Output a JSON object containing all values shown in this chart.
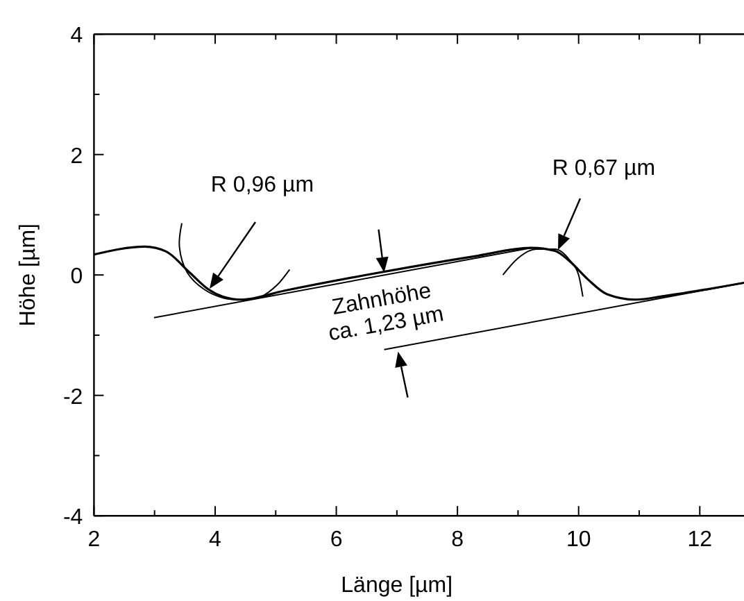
{
  "chart_data": {
    "type": "line",
    "xlabel": "Länge [µm]",
    "ylabel": "Höhe [µm]",
    "xlim": [
      2,
      12.73
    ],
    "ylim": [
      -4,
      4
    ],
    "xticks": [
      2,
      {
        "value": 3,
        "label": null
      },
      4,
      {
        "value": 5,
        "label": null
      },
      6,
      {
        "value": 7,
        "label": null
      },
      8,
      {
        "value": 9,
        "label": null
      },
      10,
      {
        "value": 11,
        "label": null
      },
      12
    ],
    "yticks": [
      -4,
      {
        "value": -3,
        "label": null
      },
      -2,
      {
        "value": -1,
        "label": null
      },
      0,
      {
        "value": 1,
        "label": null
      },
      2,
      {
        "value": 3,
        "label": null
      },
      4
    ],
    "grid": false,
    "marker": "none",
    "line_style": "solid",
    "series": [
      {
        "color": "#000000",
        "x": [
          2,
          2.84,
          3.19,
          3.58,
          3.89,
          4.13,
          4.44,
          5.15,
          6.71,
          8.28,
          9.22,
          9.61,
          9.85,
          10.16,
          10.47,
          10.94,
          11.41,
          12.73
        ],
        "values": [
          0.34,
          0.47,
          0.39,
          0.04,
          -0.24,
          -0.36,
          -0.41,
          -0.26,
          0.04,
          0.31,
          0.45,
          0.4,
          0.23,
          -0.08,
          -0.32,
          -0.41,
          -0.35,
          -0.13
        ]
      },
      {
        "color": "#000000",
        "x": [
          2.99,
          9.22
        ],
        "values": [
          -0.71,
          0.45
        ]
      },
      {
        "color": "#000000",
        "x": [
          6.79,
          12.73
        ],
        "values": [
          -1.24,
          -0.13
        ]
      },
      {
        "color": "#000000",
        "x": [
          3.45,
          3.41,
          3.54,
          3.82,
          4.13,
          4.44,
          4.76,
          5.03,
          5.23
        ],
        "values": [
          0.86,
          0.47,
          0.04,
          -0.24,
          -0.38,
          -0.41,
          -0.36,
          -0.16,
          0.09
        ]
      },
      {
        "color": "#000000",
        "x": [
          8.75,
          8.99,
          9.3,
          9.61,
          9.85,
          10.0,
          10.07
        ],
        "values": [
          0.0,
          0.27,
          0.43,
          0.43,
          0.25,
          0.0,
          -0.36
        ]
      }
    ],
    "annotations": [
      "R 0,96 µm",
      "R 0,67 µm",
      {
        "text": "Zahnhöhe\nca. 1,23 µm",
        "x": 6.79,
        "y": 0.04
      }
    ]
  }
}
